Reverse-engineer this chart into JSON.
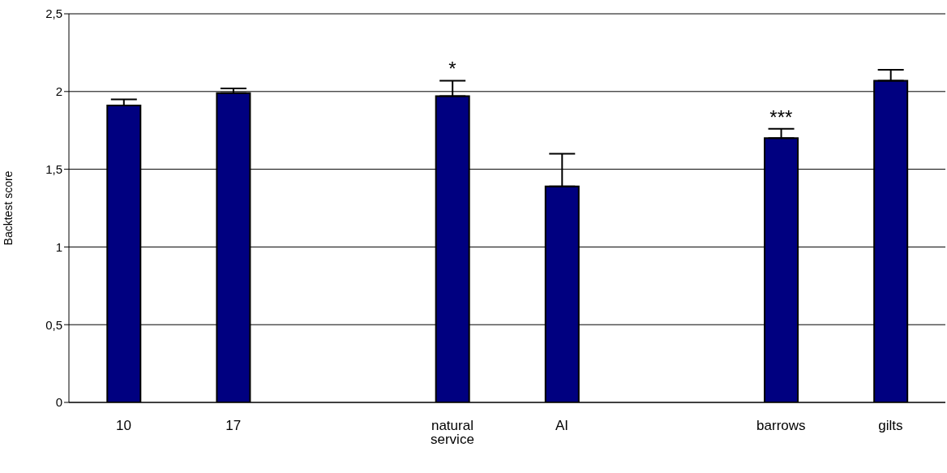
{
  "chart_data": {
    "type": "bar",
    "ylabel": "Backtest score",
    "categories": [
      "10",
      "17",
      null,
      "natural service",
      "AI",
      null,
      "barrows",
      "gilts"
    ],
    "values": [
      1.91,
      1.99,
      null,
      1.97,
      1.39,
      null,
      1.7,
      2.07
    ],
    "errors": [
      [
        1.91,
        1.95
      ],
      [
        1.99,
        2.02
      ],
      null,
      [
        1.97,
        2.07
      ],
      [
        1.39,
        1.6
      ],
      null,
      [
        1.7,
        1.76
      ],
      [
        2.07,
        2.14
      ]
    ],
    "color": "#000080",
    "ylim": [
      0,
      2.5
    ],
    "yticks": [
      0,
      {
        "value": 0.5,
        "label": "0,5"
      },
      1,
      {
        "value": 1.5,
        "label": "1,5"
      },
      2,
      {
        "value": 2.5,
        "label": "2,5"
      }
    ],
    "grid": "y",
    "legend": false,
    "annotations": [
      {
        "text": "*",
        "x": "natural service",
        "y": 2.07
      },
      {
        "text": "***",
        "x": "barrows",
        "y": 1.76
      }
    ]
  }
}
